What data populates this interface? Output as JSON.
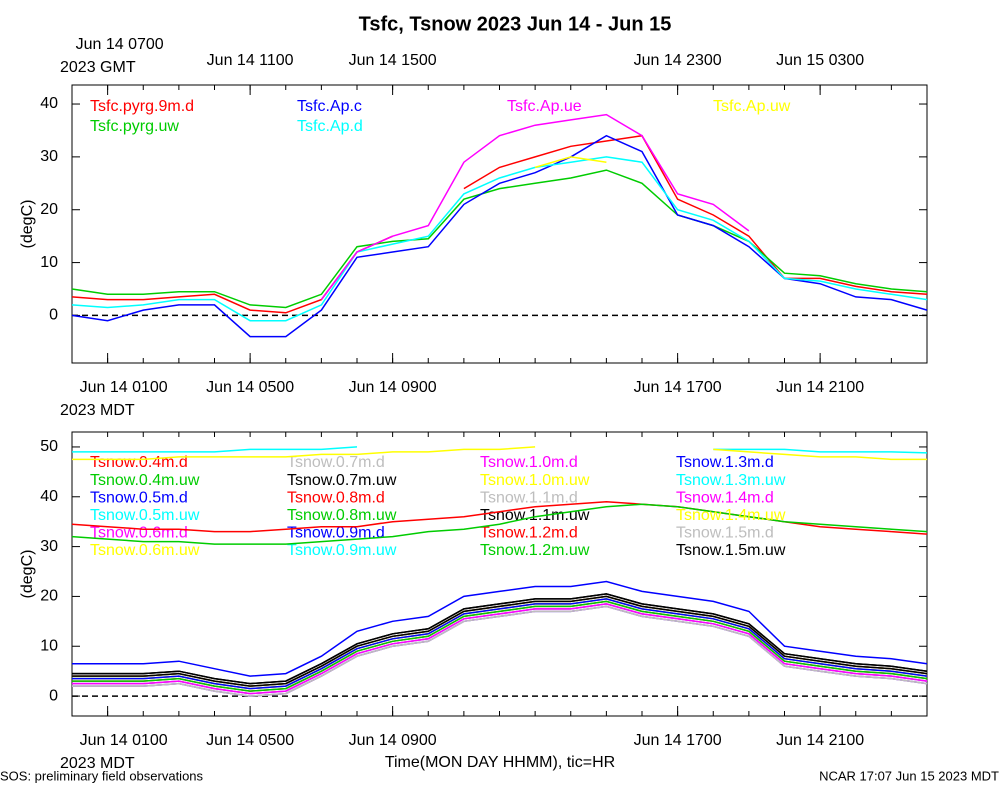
{
  "title": "Tsfc, Tsnow 2023 Jun 14 - Jun 15",
  "x_label": "Time(MON DAY HHMM), tic=HR",
  "footer_left": "SOS: preliminary field observations",
  "footer_right": "NCAR 17:07 Jun 15 2023 MDT",
  "chart_data": [
    {
      "type": "line",
      "y_label": "(degC)",
      "xlim": [
        0,
        24
      ],
      "xticks": [
        {
          "value": 1,
          "label": "Jun 14 0100"
        },
        {
          "value": 5,
          "label": "Jun 14 0500"
        },
        {
          "value": 9,
          "label": "Jun 14 0900"
        },
        {
          "value": 17,
          "label": "Jun 14 1700"
        },
        {
          "value": 21,
          "label": "Jun 14 2100"
        }
      ],
      "bottom_axis_note": "2023 MDT",
      "top_xticks": [
        {
          "value": 1,
          "label": "Jun 14 0700"
        },
        {
          "value": 5,
          "label": "Jun 14 1100"
        },
        {
          "value": 9,
          "label": "Jun 14 1500"
        },
        {
          "value": 17,
          "label": "Jun 14 2300"
        },
        {
          "value": 21,
          "label": "Jun 15 0300"
        }
      ],
      "top_axis_note": "2023 GMT",
      "xticks_minor": [
        0,
        1,
        2,
        3,
        4,
        5,
        6,
        7,
        8,
        9,
        10,
        11,
        12,
        13,
        14,
        15,
        16,
        17,
        18,
        19,
        20,
        21,
        22,
        23,
        24
      ],
      "ylim": [
        -9,
        43.6
      ],
      "yticks": [
        0,
        10,
        20,
        30,
        40
      ],
      "reference_line": 0,
      "x": [
        0,
        1,
        2,
        3,
        4,
        5,
        6,
        7,
        8,
        9,
        10,
        11,
        12,
        13,
        14,
        15,
        16,
        17,
        18,
        19,
        20,
        21,
        22,
        23,
        24
      ],
      "series": [
        {
          "name": "Tsfc.pyrg.9m.d",
          "color": "#ff0000",
          "values": [
            3.5,
            3,
            3,
            3.5,
            4,
            1,
            0.5,
            3,
            12,
            15,
            null,
            24,
            28,
            30,
            32,
            33,
            34,
            22,
            19,
            15,
            7,
            7,
            5.5,
            4.5,
            4
          ]
        },
        {
          "name": "Tsfc.pyrg.uw",
          "color": "#00cc00",
          "values": [
            5,
            4,
            4,
            4.5,
            4.5,
            2,
            1.5,
            4,
            13,
            14,
            14.5,
            22,
            24,
            25,
            26,
            27.5,
            25,
            19,
            17,
            14,
            8,
            7.5,
            6,
            5,
            4.5
          ]
        },
        {
          "name": "Tsfc.Ap.c",
          "color": "#0000ff",
          "values": [
            0,
            -1,
            1,
            2,
            2,
            -4,
            -4,
            1,
            11,
            12,
            13,
            21,
            25,
            27,
            30,
            34,
            31,
            19,
            17,
            13,
            7,
            6,
            3.5,
            3,
            1
          ]
        },
        {
          "name": "Tsfc.Ap.d",
          "color": "#00ffff",
          "values": [
            2,
            1.5,
            2,
            3,
            3,
            -1,
            -1,
            2,
            12,
            13.5,
            15,
            23,
            26,
            28,
            29,
            30,
            29,
            20,
            18,
            14,
            7,
            6.5,
            5,
            4,
            3
          ]
        },
        {
          "name": "Tsfc.Ap.ue",
          "color": "#ff00ff",
          "values": [
            null,
            null,
            null,
            null,
            null,
            null,
            null,
            3,
            12,
            15,
            17,
            29,
            34,
            36,
            37,
            38,
            34,
            23,
            21,
            16,
            null,
            null,
            null,
            null,
            null
          ]
        },
        {
          "name": "Tsfc.Ap.uw",
          "color": "#ffff00",
          "values": [
            null,
            null,
            null,
            null,
            null,
            null,
            null,
            null,
            null,
            null,
            null,
            null,
            null,
            28,
            30,
            29,
            null,
            null,
            null,
            null,
            null,
            null,
            null,
            null,
            null
          ]
        }
      ]
    },
    {
      "type": "line",
      "y_label": "(degC)",
      "xlim": [
        0,
        24
      ],
      "xticks": [
        {
          "value": 1,
          "label": "Jun 14 0100"
        },
        {
          "value": 5,
          "label": "Jun 14 0500"
        },
        {
          "value": 9,
          "label": "Jun 14 0900"
        },
        {
          "value": 17,
          "label": "Jun 14 1700"
        },
        {
          "value": 21,
          "label": "Jun 14 2100"
        }
      ],
      "bottom_axis_note": "2023 MDT",
      "xticks_minor": [
        0,
        1,
        2,
        3,
        4,
        5,
        6,
        7,
        8,
        9,
        10,
        11,
        12,
        13,
        14,
        15,
        16,
        17,
        18,
        19,
        20,
        21,
        22,
        23,
        24
      ],
      "ylim": [
        -4,
        53
      ],
      "yticks": [
        0,
        10,
        20,
        30,
        40,
        50
      ],
      "reference_line": 0,
      "x": [
        0,
        1,
        2,
        3,
        4,
        5,
        6,
        7,
        8,
        9,
        10,
        11,
        12,
        13,
        14,
        15,
        16,
        17,
        18,
        19,
        20,
        21,
        22,
        23,
        24
      ],
      "series": [
        {
          "name": "Tsnow.0.4m.d",
          "color": "#ff0000",
          "values": [
            3,
            3,
            3,
            3.5,
            2,
            1,
            1.5,
            5,
            9,
            11,
            12,
            16,
            17,
            18,
            18,
            19,
            17,
            16,
            15,
            13,
            7,
            6,
            5,
            4.5,
            3.5
          ]
        },
        {
          "name": "Tsnow.0.4m.uw",
          "color": "#00cc00",
          "values": [
            3.5,
            3.5,
            3.5,
            4,
            2.5,
            1.5,
            2,
            5.5,
            9.5,
            11.5,
            12.5,
            16.5,
            17.5,
            18.5,
            18.5,
            19.5,
            17.5,
            16.5,
            15.5,
            13.5,
            7.5,
            6.5,
            5.5,
            5,
            4
          ]
        },
        {
          "name": "Tsnow.0.5m.d",
          "color": "#0000ff",
          "values": [
            6.5,
            6.5,
            6.5,
            7,
            5.5,
            4,
            4.5,
            8,
            13,
            15,
            16,
            20,
            21,
            22,
            22,
            23,
            21,
            20,
            19,
            17,
            10,
            9,
            8,
            7.5,
            6.5
          ]
        },
        {
          "name": "Tsnow.0.5m.uw",
          "color": "#00ffff",
          "values": [
            2.5,
            2.5,
            2.5,
            3,
            1.5,
            0.5,
            1,
            4.5,
            8.5,
            10.5,
            11.5,
            15.5,
            16.5,
            17.5,
            17.5,
            18.5,
            16.5,
            15.5,
            14.5,
            12.5,
            6.5,
            5.5,
            4.5,
            4,
            3
          ]
        },
        {
          "name": "Tsnow.0.6m.d",
          "color": "#ff00ff",
          "values": [
            2.5,
            2.5,
            2.5,
            3,
            1.5,
            0.5,
            1,
            4.5,
            8.5,
            10.5,
            11.5,
            15.5,
            16.5,
            17.5,
            17.5,
            18.5,
            16.5,
            15.5,
            14.5,
            12.5,
            6.5,
            5.5,
            4.5,
            4,
            3
          ]
        },
        {
          "name": "Tsnow.0.6m.uw",
          "color": "#ffff00",
          "values": [
            3.5,
            3.5,
            3.5,
            4,
            2.5,
            1.5,
            2,
            5.5,
            9.5,
            11.5,
            12.5,
            16.5,
            17.5,
            18.5,
            18.5,
            19.5,
            17.5,
            16.5,
            15.5,
            13.5,
            7.5,
            6.5,
            5.5,
            5,
            4
          ]
        },
        {
          "name": "Tsnow.0.7m.d",
          "color": "#bebebe",
          "values": [
            2,
            2,
            2,
            2.5,
            1,
            0,
            0.5,
            4,
            8,
            10,
            11,
            15,
            16,
            17,
            17,
            18,
            16,
            15,
            14,
            12,
            6,
            5,
            4,
            3.5,
            2.5
          ]
        },
        {
          "name": "Tsnow.0.7m.uw",
          "color": "#000000",
          "values": [
            4.5,
            4.5,
            4.5,
            5,
            3.5,
            2.5,
            3,
            6.5,
            10.5,
            12.5,
            13.5,
            17.5,
            18.5,
            19.5,
            19.5,
            20.5,
            18.5,
            17.5,
            16.5,
            14.5,
            8.5,
            7.5,
            6.5,
            6,
            5
          ]
        },
        {
          "name": "Tsnow.0.8m.d",
          "color": "#ff0000",
          "values": [
            4,
            4,
            4,
            4.5,
            3,
            2,
            2.5,
            6,
            10,
            12,
            13,
            17,
            18,
            19,
            19,
            20,
            18,
            17,
            16,
            14,
            8,
            7,
            6,
            5.5,
            4.5
          ]
        },
        {
          "name": "Tsnow.0.8m.uw",
          "color": "#00cc00",
          "values": [
            3,
            3,
            3,
            3.5,
            2,
            1,
            1.5,
            5,
            9,
            11,
            12,
            16,
            17,
            18,
            18,
            19,
            17,
            16,
            15,
            13,
            7,
            6,
            5,
            4.5,
            3.5
          ]
        },
        {
          "name": "Tsnow.0.9m.d",
          "color": "#0000ff",
          "values": [
            4,
            4,
            4,
            4.5,
            3,
            2,
            2.5,
            6,
            10,
            12,
            13,
            17,
            18,
            19,
            19,
            20,
            18,
            17,
            16,
            14,
            8,
            7,
            6,
            5.5,
            4.5
          ]
        },
        {
          "name": "Tsnow.0.9m.uw",
          "color": "#00ffff",
          "values": [
            2,
            2,
            2,
            2.5,
            1,
            0,
            0.5,
            4,
            8,
            10,
            11,
            15,
            16,
            17,
            17,
            18,
            16,
            15,
            14,
            12,
            6,
            5,
            4,
            3.5,
            2.5
          ]
        },
        {
          "name": "Tsnow.1.0m.d",
          "color": "#ff00ff",
          "values": [
            2,
            2,
            2,
            2.5,
            1,
            0,
            0.5,
            4,
            8,
            10,
            11,
            15,
            16,
            17,
            17,
            18,
            16,
            15,
            14,
            12,
            6,
            5,
            4,
            3.5,
            2.5
          ]
        },
        {
          "name": "Tsnow.1.0m.uw",
          "color": "#ffff00",
          "values": [
            4,
            4,
            4,
            4.5,
            3,
            2,
            2.5,
            6,
            10,
            12,
            13,
            17,
            18,
            19,
            19,
            20,
            18,
            17,
            16,
            14,
            8,
            7,
            6,
            5.5,
            4.5
          ]
        },
        {
          "name": "Tsnow.1.1m.d",
          "color": "#bebebe",
          "values": [
            2.5,
            2.5,
            2.5,
            3,
            1.5,
            0.5,
            1,
            4.5,
            8.5,
            10.5,
            11.5,
            15.5,
            16.5,
            17.5,
            17.5,
            18.5,
            16.5,
            15.5,
            14.5,
            12.5,
            6.5,
            5.5,
            4.5,
            4,
            3
          ]
        },
        {
          "name": "Tsnow.1.1m.uw",
          "color": "#000000",
          "values": [
            4,
            4,
            4,
            4.5,
            3,
            2,
            2.5,
            6,
            10,
            12,
            13,
            17,
            18,
            19,
            19,
            20,
            18,
            17,
            16,
            14,
            8,
            7,
            6,
            5.5,
            4.5
          ]
        },
        {
          "name": "Tsnow.1.2m.d",
          "color": "#ff0000",
          "values": [
            34.5,
            34,
            33.5,
            33.5,
            33,
            33,
            33.5,
            34,
            34,
            35,
            35.5,
            36,
            37,
            38,
            38.5,
            39,
            38.5,
            38,
            37,
            36,
            35,
            34,
            33.5,
            33,
            32.5
          ]
        },
        {
          "name": "Tsnow.1.2m.uw",
          "color": "#00cc00",
          "values": [
            32,
            31.5,
            31,
            31,
            30.5,
            30.5,
            30.5,
            31,
            31.5,
            32,
            33,
            33.5,
            34.5,
            36,
            37,
            38,
            38.5,
            38,
            37,
            36,
            35,
            34.5,
            34,
            33.5,
            33
          ]
        },
        {
          "name": "Tsnow.1.3m.d",
          "color": "#0000ff",
          "values": [
            3.5,
            3.5,
            3.5,
            4,
            2.5,
            1.5,
            2,
            5.5,
            9.5,
            11.5,
            12.5,
            16.5,
            17.5,
            18.5,
            18.5,
            19.5,
            17.5,
            16.5,
            15.5,
            13.5,
            7.5,
            6.5,
            5.5,
            5,
            4
          ]
        },
        {
          "name": "Tsnow.1.3m.uw",
          "color": "#00ffff",
          "values": [
            49,
            49,
            49,
            49,
            49,
            49.5,
            49.5,
            49.5,
            50,
            null,
            null,
            null,
            null,
            null,
            null,
            null,
            null,
            null,
            49.5,
            49.5,
            49.5,
            49,
            49,
            49,
            48.8
          ]
        },
        {
          "name": "Tsnow.1.4m.d",
          "color": "#ff00ff",
          "values": [
            2.5,
            2.5,
            2.5,
            3,
            1.5,
            0.5,
            1,
            4.5,
            8.5,
            10.5,
            11.5,
            15.5,
            16.5,
            17.5,
            17.5,
            18.5,
            16.5,
            15.5,
            14.5,
            12.5,
            6.5,
            5.5,
            4.5,
            4,
            3
          ]
        },
        {
          "name": "Tsnow.1.4m.uw",
          "color": "#ffff00",
          "values": [
            47.5,
            47.5,
            47.5,
            48,
            48,
            48,
            48,
            48.5,
            48.5,
            49,
            49,
            49.5,
            49.5,
            50,
            null,
            null,
            null,
            null,
            49.5,
            49,
            48.5,
            48,
            48,
            47.5,
            47.5
          ]
        },
        {
          "name": "Tsnow.1.5m.d",
          "color": "#bebebe",
          "values": [
            2,
            2,
            2,
            2.5,
            1,
            0,
            0.5,
            4,
            8,
            10,
            11,
            15,
            16,
            17,
            17,
            18,
            16,
            15,
            14,
            12,
            6,
            5,
            4,
            3.5,
            2.5
          ]
        },
        {
          "name": "Tsnow.1.5m.uw",
          "color": "#000000",
          "values": [
            4.5,
            4.5,
            4.5,
            5,
            3.5,
            2.5,
            3,
            6.5,
            10.5,
            12.5,
            13.5,
            17.5,
            18.5,
            19.5,
            19.5,
            20.5,
            18.5,
            17.5,
            16.5,
            14.5,
            8.5,
            7.5,
            6.5,
            6,
            5
          ]
        }
      ]
    }
  ]
}
